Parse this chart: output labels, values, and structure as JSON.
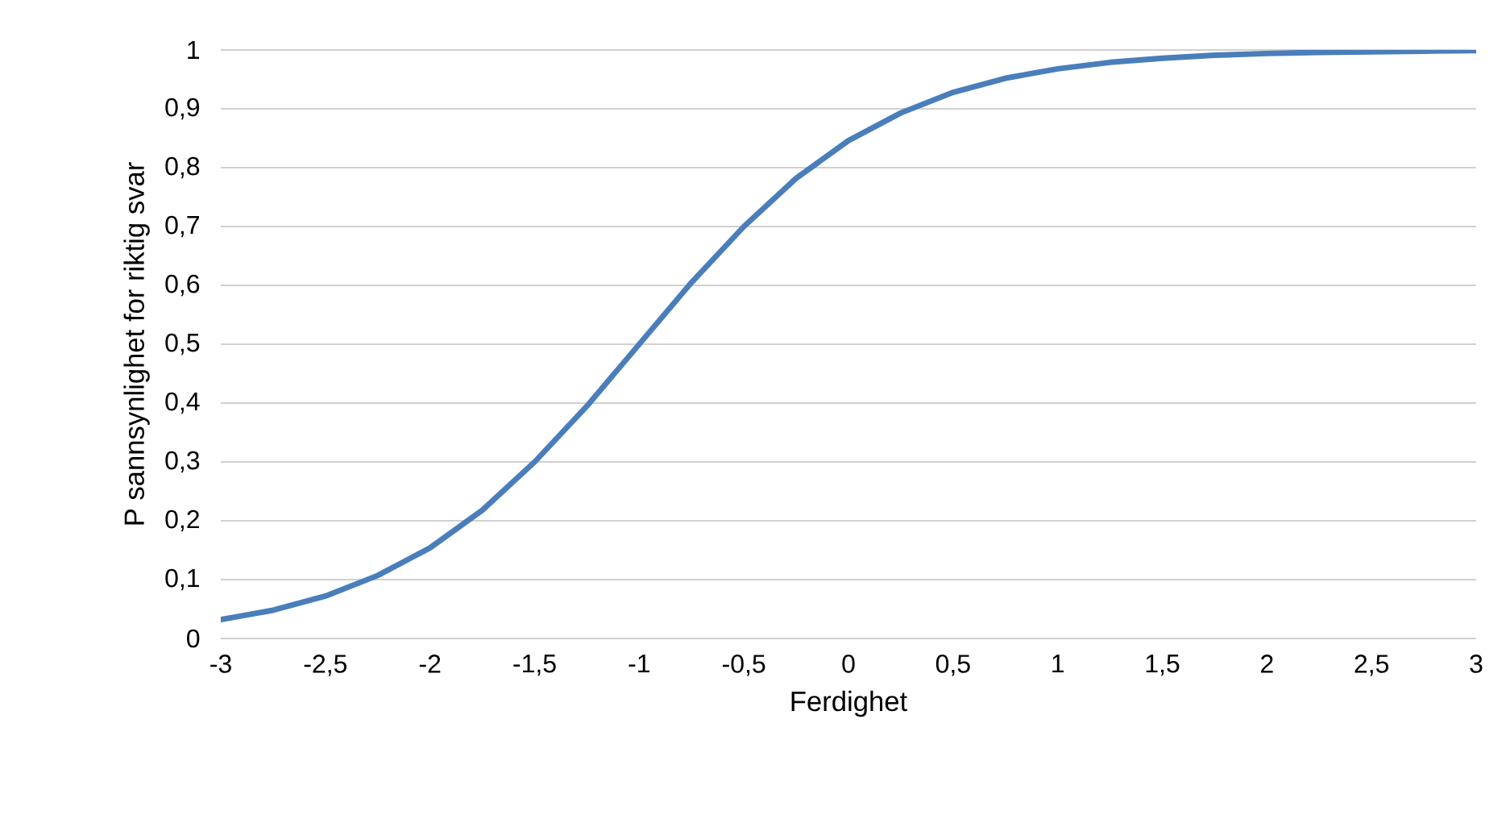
{
  "chart_data": {
    "type": "line",
    "xlabel": "Ferdighet",
    "ylabel": "P sannsynlighet for riktig svar",
    "x": [
      -3,
      -2.75,
      -2.5,
      -2.25,
      -2,
      -1.75,
      -1.5,
      -1.25,
      -1,
      -0.75,
      -0.5,
      -0.25,
      0,
      0.25,
      0.5,
      0.75,
      1,
      1.25,
      1.5,
      1.75,
      2,
      2.25,
      2.5,
      2.75,
      3
    ],
    "series": [
      {
        "color": "#4a7ebb",
        "values": [
          0.032,
          0.048,
          0.072,
          0.107,
          0.154,
          0.218,
          0.3,
          0.395,
          0.5,
          0.605,
          0.7,
          0.782,
          0.846,
          0.893,
          0.928,
          0.952,
          0.968,
          0.979,
          0.986,
          0.991,
          0.994,
          0.996,
          0.997,
          0.998,
          0.999
        ]
      }
    ],
    "xlim": [
      -3,
      3
    ],
    "ylim": [
      0,
      1
    ],
    "xticks": [
      -3,
      {
        "value": -2.5,
        "label": "-2,5"
      },
      -2,
      {
        "value": -1.5,
        "label": "-1,5"
      },
      -1,
      {
        "value": -0.5,
        "label": "-0,5"
      },
      0,
      {
        "value": 0.5,
        "label": "0,5"
      },
      1,
      {
        "value": 1.5,
        "label": "1,5"
      },
      2,
      {
        "value": 2.5,
        "label": "2,5"
      },
      3
    ],
    "yticks": [
      0,
      {
        "value": 0.1,
        "label": "0,1"
      },
      {
        "value": 0.2,
        "label": "0,2"
      },
      {
        "value": 0.3,
        "label": "0,3"
      },
      {
        "value": 0.4,
        "label": "0,4"
      },
      {
        "value": 0.5,
        "label": "0,5"
      },
      {
        "value": 0.6,
        "label": "0,6"
      },
      {
        "value": 0.7,
        "label": "0,7"
      },
      {
        "value": 0.8,
        "label": "0,8"
      },
      {
        "value": 0.9,
        "label": "0,9"
      },
      1
    ],
    "grid": "y"
  }
}
